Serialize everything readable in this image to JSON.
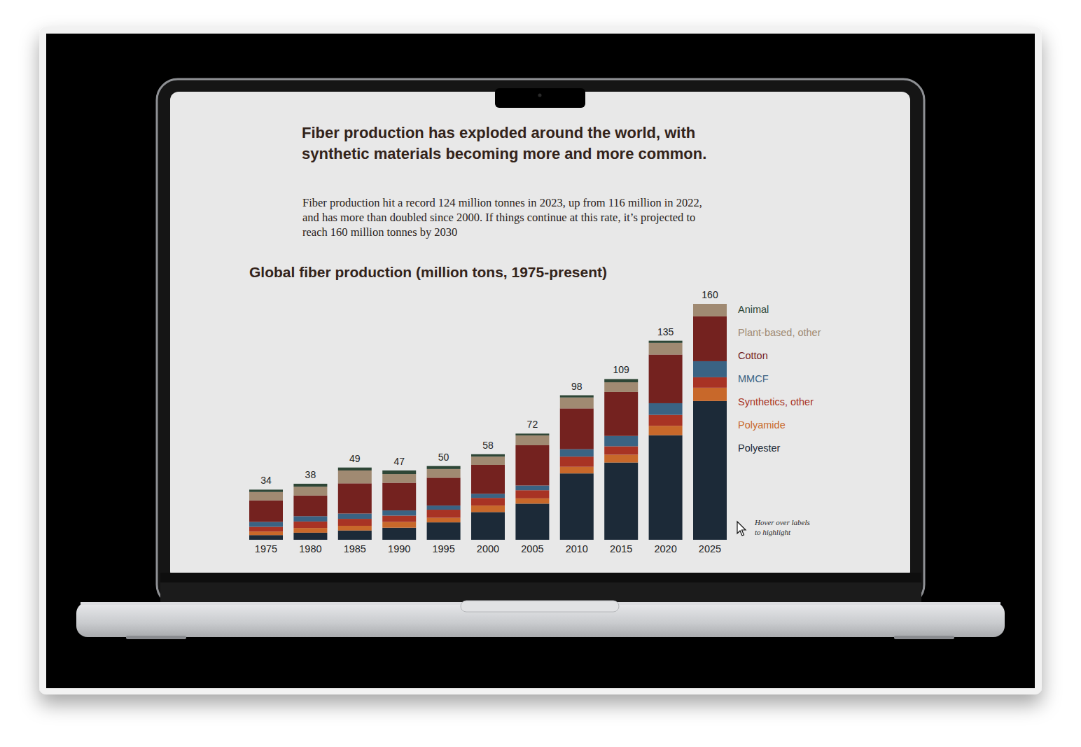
{
  "chart_data": {
    "type": "bar",
    "stacked": true,
    "title": "Global fiber production (million tons, 1975-present)",
    "categories": [
      "1975",
      "1980",
      "1985",
      "1990",
      "1995",
      "2000",
      "2005",
      "2010",
      "2015",
      "2020",
      "2025"
    ],
    "series": [
      {
        "name": "Polyester",
        "color": "#1c2a38",
        "values": [
          3.2,
          4.8,
          6.3,
          8.2,
          11.8,
          18.8,
          24.5,
          45.0,
          52.4,
          70.9,
          94.1
        ]
      },
      {
        "name": "Polyamide",
        "color": "#c8682a",
        "values": [
          2.4,
          3.2,
          3.2,
          3.9,
          3.1,
          4.4,
          3.6,
          4.5,
          5.3,
          6.4,
          9.0
        ]
      },
      {
        "name": "Synthetics, other",
        "color": "#a83324",
        "values": [
          3.2,
          4.4,
          4.7,
          4.3,
          5.5,
          5.2,
          5.5,
          6.9,
          5.7,
          7.4,
          7.1
        ]
      },
      {
        "name": "MMCF",
        "color": "#3a6383",
        "values": [
          3.3,
          3.6,
          3.6,
          3.5,
          2.8,
          2.8,
          3.2,
          5.0,
          7.0,
          7.9,
          10.9
        ]
      },
      {
        "name": "Cotton",
        "color": "#74221f",
        "values": [
          14.6,
          14.0,
          20.5,
          18.8,
          18.9,
          19.6,
          27.3,
          27.7,
          29.8,
          33.0,
          30.4
        ]
      },
      {
        "name": "Plant-based, other",
        "color": "#a08a72",
        "values": [
          5.7,
          6.0,
          8.7,
          5.9,
          5.9,
          5.6,
          6.7,
          7.4,
          6.6,
          7.9,
          8.5
        ]
      },
      {
        "name": "Animal",
        "color": "#2e4636",
        "values": [
          1.6,
          2.0,
          2.0,
          2.4,
          2.0,
          1.6,
          1.2,
          1.5,
          2.2,
          1.5,
          0
        ]
      }
    ],
    "totals": [
      34,
      38,
      49,
      47,
      50,
      58,
      72,
      98,
      109,
      135,
      160
    ],
    "ylim": [
      0,
      160
    ],
    "tick_labels": "x",
    "legend": "right"
  },
  "page": {
    "headline": [
      "Fiber production has exploded around the world, with",
      "synthetic materials becoming more and more common."
    ],
    "intro": [
      "Fiber production hit a record 124 million tonnes in 2023, up from 116 million in 2022,",
      "and has more than doubled since 2000. If things continue at this rate, it’s projected to",
      "reach 160 million tonnes by 2030"
    ],
    "hint": [
      "Hover over labels",
      "to highlight"
    ]
  }
}
